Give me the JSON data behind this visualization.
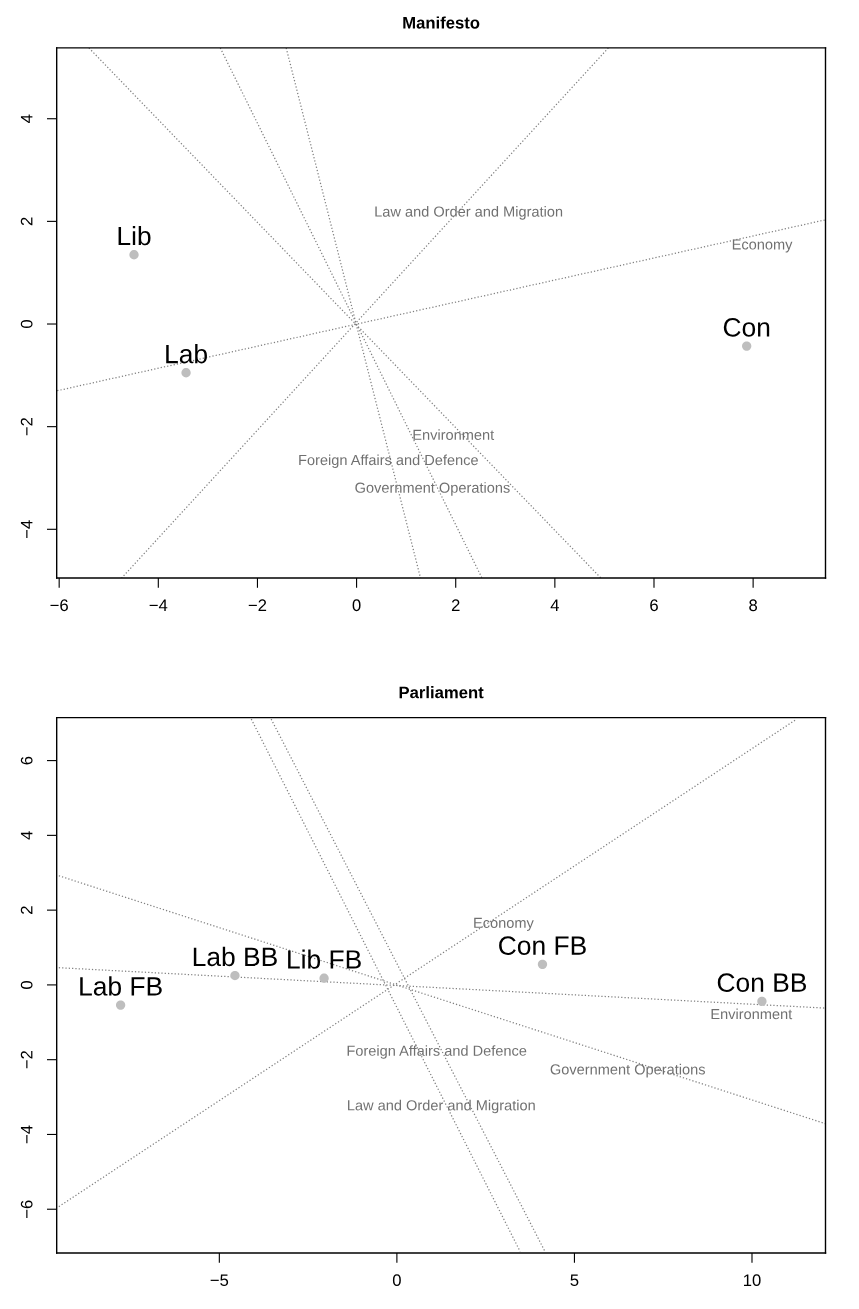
{
  "chart_data": [
    {
      "type": "scatter",
      "title": "Manifesto",
      "xlim": [
        -6.05,
        9.46
      ],
      "ylim": [
        -4.95,
        5.38
      ],
      "xticks": [
        {
          "value": -6,
          "label": "−6"
        },
        {
          "value": -4,
          "label": "−4"
        },
        {
          "value": -2,
          "label": "−2"
        },
        0,
        2,
        4,
        6,
        8
      ],
      "yticks": [
        {
          "value": -4,
          "label": "−4"
        },
        {
          "value": -2,
          "label": "−2"
        },
        0,
        2,
        4
      ],
      "grid": false,
      "series": [
        {
          "type": "line",
          "line_style": "dotted",
          "color": "#808080",
          "x": [
            -6.04,
            9.46
          ],
          "values": [
            -1.3,
            2.03
          ]
        },
        {
          "type": "line",
          "line_style": "dotted",
          "color": "#808080",
          "x": [
            -5.4,
            4.93
          ],
          "values": [
            5.38,
            -4.95
          ]
        },
        {
          "type": "line",
          "line_style": "dotted",
          "color": "#808080",
          "x": [
            -2.75,
            2.53
          ],
          "values": [
            5.38,
            -4.95
          ]
        },
        {
          "type": "line",
          "line_style": "dotted",
          "color": "#808080",
          "x": [
            -1.42,
            1.29
          ],
          "values": [
            5.38,
            -4.95
          ]
        },
        {
          "type": "line",
          "line_style": "dotted",
          "color": "#808080",
          "x": [
            5.08,
            -4.74
          ],
          "values": [
            5.38,
            -4.95
          ]
        },
        {
          "marker": "circle",
          "color": "#bebebe",
          "x": [
            -4.49,
            -3.44,
            7.87
          ],
          "values": [
            1.35,
            -0.95,
            -0.43
          ],
          "value_labels": [
            "Lib",
            "Lab",
            "Con"
          ]
        }
      ],
      "annotations": [
        {
          "text": "Law and Order and Migration",
          "x": 2.26,
          "y": 2.38
        },
        {
          "text": "Economy",
          "x": 8.18,
          "y": 1.74
        },
        {
          "text": "Environment",
          "x": 1.95,
          "y": -1.97
        },
        {
          "text": "Foreign Affairs and Defence",
          "x": 0.64,
          "y": -2.46
        },
        {
          "text": "Government Operations",
          "x": 1.53,
          "y": -3.0
        }
      ]
    },
    {
      "type": "scatter",
      "title": "Parliament",
      "xlim": [
        -9.58,
        12.07
      ],
      "ylim": [
        -7.17,
        7.15
      ],
      "xticks": [
        {
          "value": -5,
          "label": "−5"
        },
        0,
        5,
        10
      ],
      "yticks": [
        {
          "value": -6,
          "label": "−6"
        },
        {
          "value": -4,
          "label": "−4"
        },
        {
          "value": -2,
          "label": "−2"
        },
        0,
        2,
        4,
        6
      ],
      "grid": false,
      "series": [
        {
          "type": "line",
          "line_style": "dotted",
          "color": "#808080",
          "x": [
            -9.52,
            11.26
          ],
          "values": [
            -5.93,
            7.11
          ]
        },
        {
          "type": "line",
          "line_style": "dotted",
          "color": "#808080",
          "x": [
            -9.52,
            12.06
          ],
          "values": [
            2.92,
            -3.71
          ]
        },
        {
          "type": "line",
          "line_style": "dotted",
          "color": "#808080",
          "x": [
            -9.52,
            12.06
          ],
          "values": [
            0.46,
            -0.62
          ]
        },
        {
          "type": "line",
          "line_style": "dotted",
          "color": "#808080",
          "x": [
            -4.1,
            3.47
          ],
          "values": [
            7.11,
            -7.13
          ]
        },
        {
          "type": "line",
          "line_style": "dotted",
          "color": "#808080",
          "x": [
            -3.54,
            4.17
          ],
          "values": [
            7.11,
            -7.13
          ]
        },
        {
          "marker": "circle",
          "color": "#bebebe",
          "x": [
            -7.78,
            -4.56,
            -2.05,
            4.1,
            10.28
          ],
          "values": [
            -0.54,
            0.25,
            0.18,
            0.55,
            -0.44
          ],
          "value_labels": [
            "Lab FB",
            "Lab BB",
            "Lib FB",
            "Con FB",
            "Con BB"
          ]
        }
      ],
      "annotations": [
        {
          "text": "Economy",
          "x": 3.0,
          "y": 1.92
        },
        {
          "text": "Environment",
          "x": 9.98,
          "y": -0.52
        },
        {
          "text": "Foreign Affairs and Defence",
          "x": 1.12,
          "y": -1.5
        },
        {
          "text": "Government Operations",
          "x": 6.5,
          "y": -2.0
        },
        {
          "text": "Law and Order and Migration",
          "x": 1.25,
          "y": -2.96
        }
      ]
    }
  ]
}
